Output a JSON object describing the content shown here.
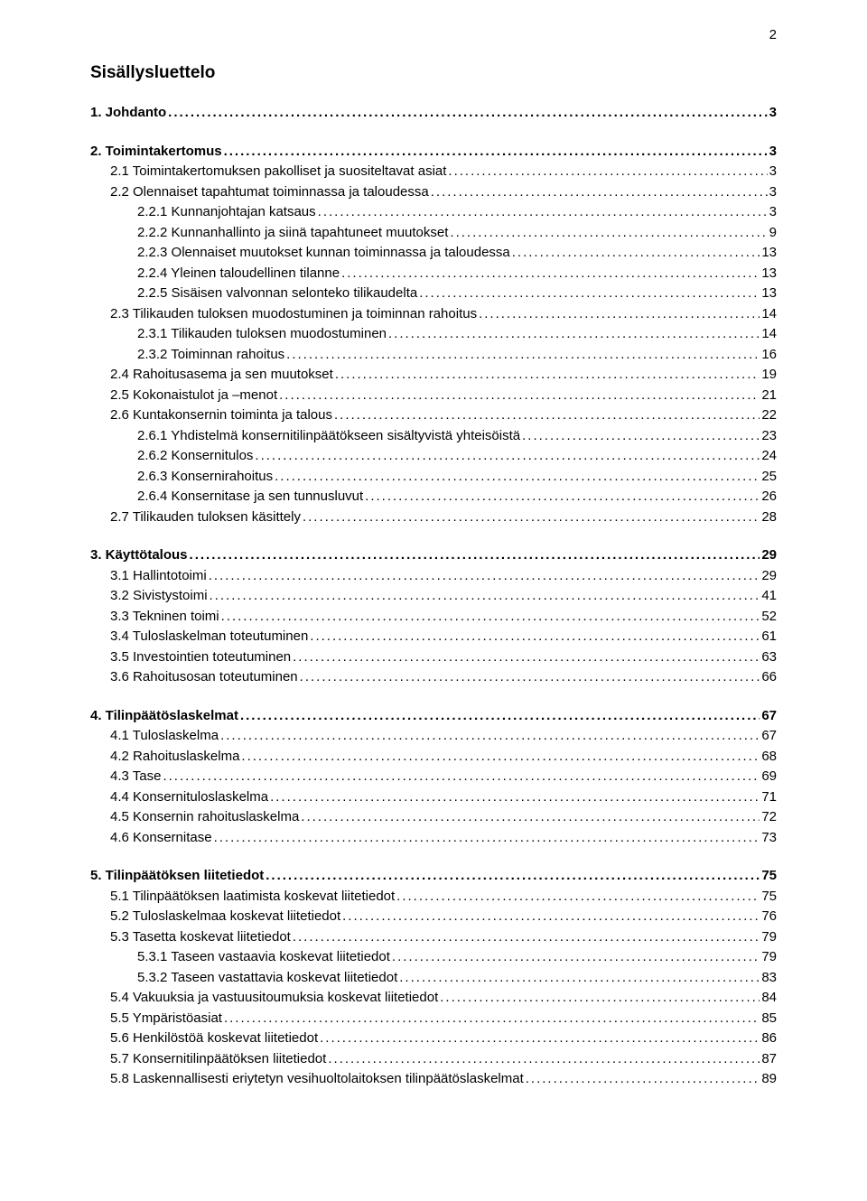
{
  "page_number": "2",
  "title": "Sisällysluettelo",
  "colors": {
    "text": "#000000",
    "background": "#ffffff",
    "leader": "#000000"
  },
  "typography": {
    "body_fontsize_pt": 11,
    "title_fontsize_pt": 14,
    "font_family": "Arial"
  },
  "sections": [
    {
      "entries": [
        {
          "label": "1. Johdanto",
          "page": "3",
          "indent": 0,
          "bold": true
        }
      ]
    },
    {
      "entries": [
        {
          "label": "2. Toimintakertomus",
          "page": "3",
          "indent": 0,
          "bold": true
        },
        {
          "label": "2.1 Toimintakertomuksen pakolliset ja suositeltavat asiat",
          "page": "3",
          "indent": 1,
          "bold": false
        },
        {
          "label": "2.2 Olennaiset tapahtumat toiminnassa ja taloudessa",
          "page": "3",
          "indent": 1,
          "bold": false
        },
        {
          "label": "2.2.1 Kunnanjohtajan katsaus",
          "page": "3",
          "indent": 2,
          "bold": false
        },
        {
          "label": "2.2.2 Kunnanhallinto ja siinä tapahtuneet muutokset",
          "page": "9",
          "indent": 2,
          "bold": false
        },
        {
          "label": "2.2.3 Olennaiset muutokset kunnan toiminnassa ja taloudessa",
          "page": "13",
          "indent": 2,
          "bold": false
        },
        {
          "label": "2.2.4 Yleinen taloudellinen tilanne",
          "page": "13",
          "indent": 2,
          "bold": false
        },
        {
          "label": "2.2.5 Sisäisen valvonnan selonteko tilikaudelta",
          "page": "13",
          "indent": 2,
          "bold": false
        },
        {
          "label": "2.3 Tilikauden tuloksen muodostuminen ja toiminnan rahoitus",
          "page": "14",
          "indent": 1,
          "bold": false
        },
        {
          "label": "2.3.1 Tilikauden tuloksen muodostuminen",
          "page": "14",
          "indent": 2,
          "bold": false
        },
        {
          "label": "2.3.2 Toiminnan rahoitus",
          "page": "16",
          "indent": 2,
          "bold": false
        },
        {
          "label": "2.4 Rahoitusasema ja sen muutokset",
          "page": "19",
          "indent": 1,
          "bold": false
        },
        {
          "label": "2.5 Kokonaistulot ja –menot",
          "page": "21",
          "indent": 1,
          "bold": false
        },
        {
          "label": "2.6 Kuntakonsernin toiminta ja talous",
          "page": "22",
          "indent": 1,
          "bold": false
        },
        {
          "label": "2.6.1 Yhdistelmä konsernitilinpäätökseen sisältyvistä yhteisöistä",
          "page": "23",
          "indent": 2,
          "bold": false
        },
        {
          "label": "2.6.2 Konsernitulos",
          "page": "24",
          "indent": 2,
          "bold": false
        },
        {
          "label": "2.6.3 Konsernirahoitus",
          "page": "25",
          "indent": 2,
          "bold": false
        },
        {
          "label": "2.6.4 Konsernitase ja sen tunnusluvut",
          "page": "26",
          "indent": 2,
          "bold": false
        },
        {
          "label": "2.7 Tilikauden tuloksen käsittely",
          "page": "28",
          "indent": 1,
          "bold": false
        }
      ]
    },
    {
      "entries": [
        {
          "label": "3. Käyttötalous",
          "page": "29",
          "indent": 0,
          "bold": true
        },
        {
          "label": "3.1 Hallintotoimi",
          "page": "29",
          "indent": 1,
          "bold": false
        },
        {
          "label": "3.2 Sivistystoimi",
          "page": "41",
          "indent": 1,
          "bold": false
        },
        {
          "label": "3.3 Tekninen toimi",
          "page": "52",
          "indent": 1,
          "bold": false
        },
        {
          "label": "3.4 Tuloslaskelman toteutuminen",
          "page": "61",
          "indent": 1,
          "bold": false
        },
        {
          "label": "3.5 Investointien toteutuminen",
          "page": "63",
          "indent": 1,
          "bold": false
        },
        {
          "label": "3.6 Rahoitusosan toteutuminen",
          "page": "66",
          "indent": 1,
          "bold": false
        }
      ]
    },
    {
      "entries": [
        {
          "label": "4. Tilinpäätöslaskelmat",
          "page": "67",
          "indent": 0,
          "bold": true
        },
        {
          "label": "4.1 Tuloslaskelma",
          "page": "67",
          "indent": 1,
          "bold": false
        },
        {
          "label": "4.2 Rahoituslaskelma",
          "page": "68",
          "indent": 1,
          "bold": false
        },
        {
          "label": "4.3 Tase",
          "page": "69",
          "indent": 1,
          "bold": false
        },
        {
          "label": "4.4 Konsernituloslaskelma",
          "page": "71",
          "indent": 1,
          "bold": false
        },
        {
          "label": "4.5 Konsernin rahoituslaskelma",
          "page": "72",
          "indent": 1,
          "bold": false
        },
        {
          "label": "4.6 Konsernitase",
          "page": "73",
          "indent": 1,
          "bold": false
        }
      ]
    },
    {
      "entries": [
        {
          "label": "5. Tilinpäätöksen liitetiedot",
          "page": "75",
          "indent": 0,
          "bold": true
        },
        {
          "label": "5.1 Tilinpäätöksen laatimista koskevat liitetiedot",
          "page": "75",
          "indent": 1,
          "bold": false
        },
        {
          "label": "5.2 Tuloslaskelmaa koskevat liitetiedot",
          "page": "76",
          "indent": 1,
          "bold": false
        },
        {
          "label": "5.3 Tasetta koskevat liitetiedot",
          "page": "79",
          "indent": 1,
          "bold": false
        },
        {
          "label": "5.3.1 Taseen vastaavia koskevat liitetiedot",
          "page": "79",
          "indent": 2,
          "bold": false
        },
        {
          "label": "5.3.2 Taseen vastattavia koskevat liitetiedot",
          "page": "83",
          "indent": 2,
          "bold": false
        },
        {
          "label": "5.4 Vakuuksia ja vastuusitoumuksia koskevat liitetiedot",
          "page": "84",
          "indent": 1,
          "bold": false
        },
        {
          "label": "5.5 Ympäristöasiat",
          "page": "85",
          "indent": 1,
          "bold": false
        },
        {
          "label": "5.6 Henkilöstöä koskevat liitetiedot",
          "page": "86",
          "indent": 1,
          "bold": false
        },
        {
          "label": "5.7 Konsernitilinpäätöksen liitetiedot",
          "page": "87",
          "indent": 1,
          "bold": false
        },
        {
          "label": "5.8 Laskennallisesti eriytetyn vesihuoltolaitoksen tilinpäätöslaskelmat",
          "page": "89",
          "indent": 1,
          "bold": false
        }
      ]
    }
  ]
}
